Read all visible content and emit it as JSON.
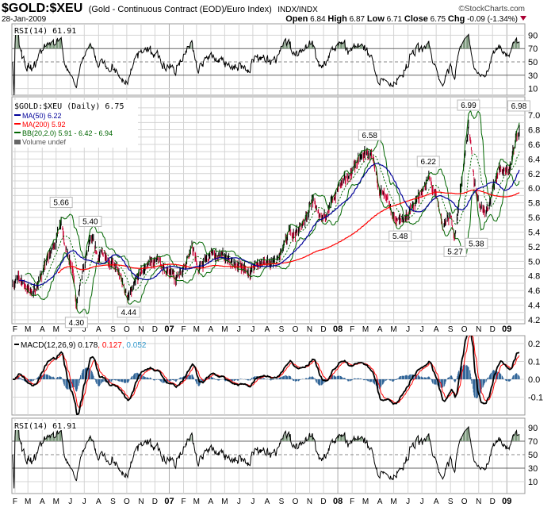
{
  "header": {
    "symbol": "$GOLD:$XEU",
    "description": "(Gold - Continuous Contract (EOD)/Euro Index)",
    "exchange": "INDX/INDX",
    "copyright": "©StockCharts.com",
    "date": "28-Jan-2009",
    "open_label": "Open",
    "open": "6.84",
    "high_label": "High",
    "high": "6.87",
    "low_label": "Low",
    "low": "6.71",
    "close_label": "Close",
    "close": "6.75",
    "chg_label": "Chg",
    "chg": "-0.09 (-1.34%)",
    "chg_icon": "down-triangle-icon"
  },
  "colors": {
    "up_bar": "#000000",
    "down_bar": "#cc0033",
    "ma50": "#000099",
    "ma200": "#ff0000",
    "bb": "#006600",
    "macd": "#000000",
    "signal": "#ff0000",
    "histogram": "#336699",
    "rsi_fill": "#7f9a7f",
    "grid": "#d4d4d4"
  },
  "chart_data": {
    "type": "ohlc",
    "indicators": {
      "rsi_label": "RSI(14) 61.91",
      "price_label": "$GOLD:$XEU (Daily) 6.75",
      "ma50_label": "MA(50) 6.22",
      "ma200_label": "MA(200) 5.92",
      "bb_label": "BB(20,2.0) 5.91 - 6.42 - 6.94",
      "volume_label": "Volume undef",
      "macd_label_main": "MACD(12,26,9) 0.178",
      "macd_label_signal": ", 0.127",
      "macd_label_hist": ", 0.052",
      "rsi2_label": "RSI(14) 61.91"
    },
    "price_axis": {
      "min": 4.2,
      "max": 7.0,
      "ticks": [
        "4.2",
        "4.4",
        "4.6",
        "4.8",
        "5.0",
        "5.2",
        "5.4",
        "5.6",
        "5.8",
        "6.0",
        "6.2",
        "6.4",
        "6.6",
        "6.8",
        "7.0"
      ]
    },
    "rsi_axis": {
      "ticks": [
        "10",
        "30",
        "50",
        "70",
        "90"
      ]
    },
    "macd_axis": {
      "ticks": [
        "-0.1",
        "0.0",
        "0.1",
        "0.2"
      ]
    },
    "months": [
      "F",
      "M",
      "A",
      "M",
      "J",
      "J",
      "A",
      "S",
      "O",
      "N",
      "D",
      "07",
      "F",
      "M",
      "A",
      "M",
      "J",
      "J",
      "A",
      "S",
      "O",
      "N",
      "D",
      "08",
      "F",
      "M",
      "A",
      "M",
      "J",
      "J",
      "A",
      "S",
      "O",
      "N",
      "D",
      "09"
    ],
    "date_range": [
      "2006-01-27",
      "2009-01-28"
    ],
    "closes": [
      [
        "2006-01-27",
        4.72
      ],
      [
        "2006-02-15",
        4.75
      ],
      [
        "2006-03-01",
        4.62
      ],
      [
        "2006-03-15",
        4.58
      ],
      [
        "2006-04-01",
        4.85
      ],
      [
        "2006-04-15",
        5.05
      ],
      [
        "2006-05-01",
        5.3
      ],
      [
        "2006-05-12",
        5.6
      ],
      [
        "2006-05-25",
        5.1
      ],
      [
        "2006-06-06",
        4.85
      ],
      [
        "2006-06-14",
        4.4
      ],
      [
        "2006-07-01",
        4.9
      ],
      [
        "2006-07-14",
        5.3
      ],
      [
        "2006-08-01",
        5.05
      ],
      [
        "2006-08-15",
        5.12
      ],
      [
        "2006-09-01",
        4.95
      ],
      [
        "2006-09-15",
        4.8
      ],
      [
        "2006-10-05",
        4.5
      ],
      [
        "2006-10-15",
        4.6
      ],
      [
        "2006-11-01",
        4.85
      ],
      [
        "2006-11-15",
        4.95
      ],
      [
        "2006-12-01",
        5.02
      ],
      [
        "2006-12-15",
        4.95
      ],
      [
        "2007-01-02",
        4.82
      ],
      [
        "2007-01-15",
        4.78
      ],
      [
        "2007-02-01",
        4.95
      ],
      [
        "2007-02-20",
        5.18
      ],
      [
        "2007-03-05",
        4.88
      ],
      [
        "2007-03-20",
        5.0
      ],
      [
        "2007-04-05",
        5.1
      ],
      [
        "2007-04-20",
        5.08
      ],
      [
        "2007-05-05",
        5.0
      ],
      [
        "2007-05-20",
        4.95
      ],
      [
        "2007-06-05",
        4.95
      ],
      [
        "2007-06-20",
        4.85
      ],
      [
        "2007-07-05",
        4.92
      ],
      [
        "2007-07-20",
        5.0
      ],
      [
        "2007-08-05",
        4.93
      ],
      [
        "2007-08-20",
        4.97
      ],
      [
        "2007-09-05",
        5.15
      ],
      [
        "2007-09-20",
        5.4
      ],
      [
        "2007-10-05",
        5.4
      ],
      [
        "2007-10-20",
        5.55
      ],
      [
        "2007-11-07",
        5.85
      ],
      [
        "2007-11-20",
        5.62
      ],
      [
        "2007-12-05",
        5.65
      ],
      [
        "2007-12-20",
        5.8
      ],
      [
        "2008-01-05",
        6.05
      ],
      [
        "2008-01-20",
        6.1
      ],
      [
        "2008-02-05",
        6.3
      ],
      [
        "2008-02-20",
        6.4
      ],
      [
        "2008-03-05",
        6.5
      ],
      [
        "2008-03-18",
        6.3
      ],
      [
        "2008-04-01",
        6.0
      ],
      [
        "2008-04-15",
        5.8
      ],
      [
        "2008-05-01",
        5.6
      ],
      [
        "2008-05-15",
        5.55
      ],
      [
        "2008-06-01",
        5.65
      ],
      [
        "2008-06-15",
        5.75
      ],
      [
        "2008-07-01",
        5.95
      ],
      [
        "2008-07-15",
        6.15
      ],
      [
        "2008-08-01",
        5.85
      ],
      [
        "2008-08-15",
        5.5
      ],
      [
        "2008-09-01",
        5.6
      ],
      [
        "2008-09-11",
        5.35
      ],
      [
        "2008-09-22",
        5.95
      ],
      [
        "2008-10-01",
        6.4
      ],
      [
        "2008-10-10",
        6.85
      ],
      [
        "2008-10-22",
        6.1
      ],
      [
        "2008-11-03",
        5.8
      ],
      [
        "2008-11-15",
        5.7
      ],
      [
        "2008-12-01",
        5.95
      ],
      [
        "2008-12-15",
        6.3
      ],
      [
        "2008-12-30",
        6.2
      ],
      [
        "2009-01-10",
        6.3
      ],
      [
        "2009-01-20",
        6.7
      ],
      [
        "2009-01-28",
        6.75
      ]
    ],
    "annotations": [
      {
        "date": "2006-05-12",
        "value": 5.66,
        "label": "5.66",
        "pos": "above"
      },
      {
        "date": "2006-06-14",
        "value": 4.3,
        "label": "4.30",
        "pos": "below"
      },
      {
        "date": "2006-07-14",
        "value": 5.4,
        "label": "5.40",
        "pos": "above"
      },
      {
        "date": "2006-10-05",
        "value": 4.44,
        "label": "4.44",
        "pos": "below"
      },
      {
        "date": "2008-03-10",
        "value": 6.58,
        "label": "6.58",
        "pos": "above"
      },
      {
        "date": "2008-05-15",
        "value": 5.48,
        "label": "5.48",
        "pos": "below"
      },
      {
        "date": "2008-07-15",
        "value": 6.22,
        "label": "6.22",
        "pos": "above"
      },
      {
        "date": "2008-09-11",
        "value": 5.27,
        "label": "5.27",
        "pos": "below"
      },
      {
        "date": "2008-10-10",
        "value": 6.99,
        "label": "6.99",
        "pos": "above"
      },
      {
        "date": "2008-10-27",
        "value": 5.38,
        "label": "5.38",
        "pos": "below"
      },
      {
        "date": "2009-01-27",
        "value": 6.98,
        "label": "6.98",
        "pos": "above"
      }
    ]
  }
}
